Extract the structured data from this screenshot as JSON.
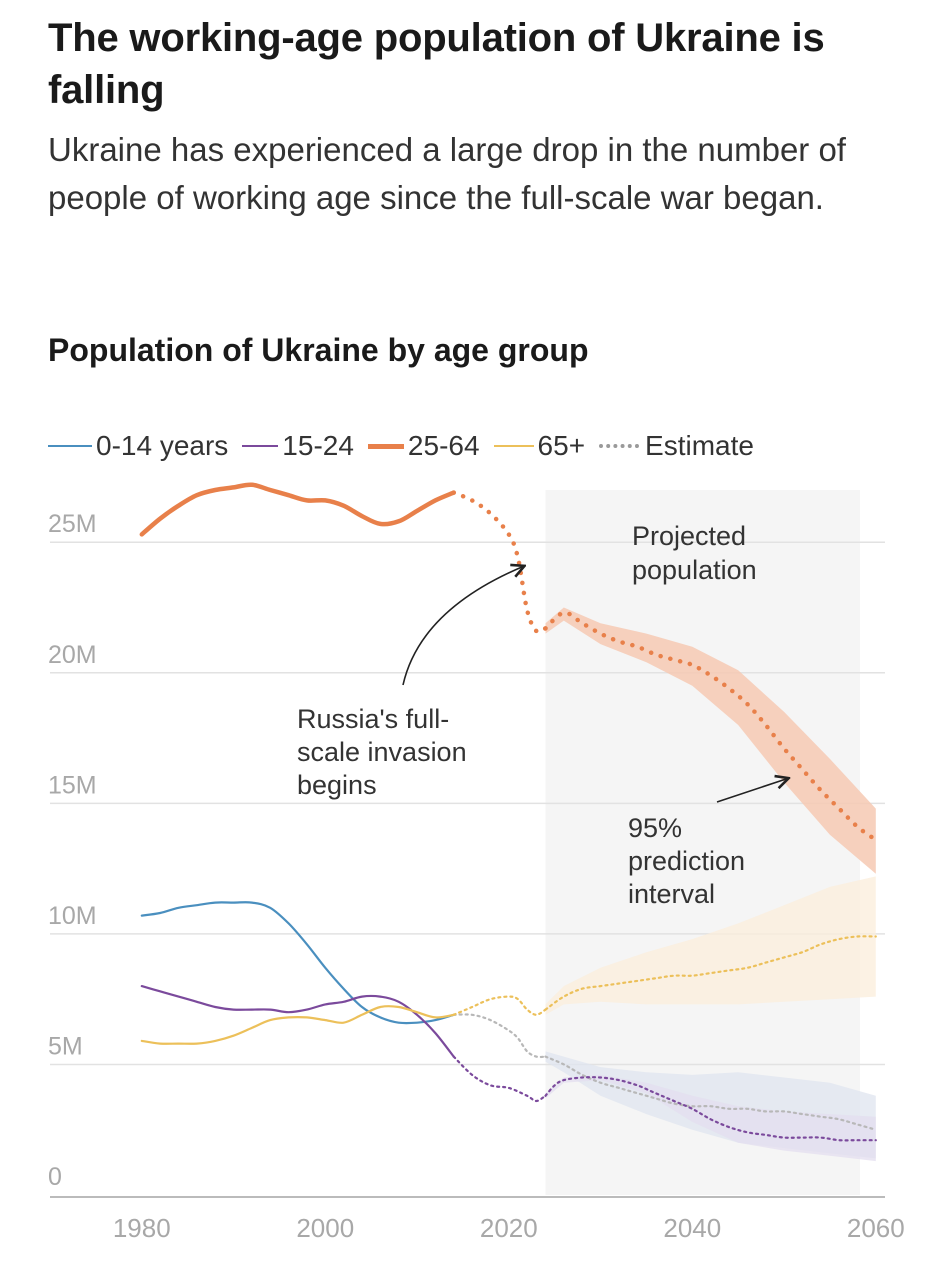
{
  "header": {
    "title": "The working-age population of Ukraine is falling",
    "subtitle": "Ukraine has experienced a large drop in the number of people of working age since the full-scale war began."
  },
  "chart_data": {
    "type": "line",
    "title": "Population of Ukraine by age group",
    "xlabel": "",
    "ylabel": "",
    "xlim": [
      1970,
      2061
    ],
    "ylim": [
      0,
      27
    ],
    "x_ticks": [
      1980,
      2000,
      2020,
      2040,
      2060
    ],
    "x_tick_labels": [
      "1980",
      "2000",
      "2020",
      "2040",
      "2060"
    ],
    "y_ticks": [
      0,
      5,
      10,
      15,
      20,
      25
    ],
    "y_tick_labels": [
      "0",
      "5M",
      "10M",
      "15M",
      "20M",
      "25M"
    ],
    "grid": true,
    "legend": [
      {
        "key": "age_0_14",
        "label": "0-14 years",
        "color": "#4a8fbf",
        "style": "solid"
      },
      {
        "key": "age_15_24",
        "label": "15-24",
        "color": "#7b4a9c",
        "style": "solid"
      },
      {
        "key": "age_25_64",
        "label": "25-64",
        "color": "#e8804a",
        "style": "solid"
      },
      {
        "key": "age_65_plus",
        "label": "65+",
        "color": "#ecc05a",
        "style": "solid"
      },
      {
        "key": "estimate",
        "label": "Estimate",
        "color": "#9a9a9a",
        "style": "dotted"
      }
    ],
    "projection_start": 2024,
    "projection_label": "Projected population",
    "series": [
      {
        "name": "25-64",
        "color": "#e8804a",
        "observed": [
          [
            1980,
            25.3
          ],
          [
            1982,
            25.9
          ],
          [
            1984,
            26.4
          ],
          [
            1986,
            26.8
          ],
          [
            1988,
            27.0
          ],
          [
            1990,
            27.1
          ],
          [
            1992,
            27.2
          ],
          [
            1994,
            27.0
          ],
          [
            1996,
            26.8
          ],
          [
            1998,
            26.6
          ],
          [
            2000,
            26.6
          ],
          [
            2002,
            26.4
          ],
          [
            2004,
            26.0
          ],
          [
            2006,
            25.7
          ],
          [
            2008,
            25.8
          ],
          [
            2010,
            26.2
          ],
          [
            2012,
            26.6
          ],
          [
            2014,
            26.9
          ]
        ],
        "estimate": [
          [
            2014,
            26.9
          ],
          [
            2016,
            26.6
          ],
          [
            2018,
            26.1
          ],
          [
            2020,
            25.3
          ],
          [
            2021,
            24.4
          ],
          [
            2022,
            22.4
          ],
          [
            2023,
            21.6
          ],
          [
            2024,
            21.7
          ]
        ],
        "projection": [
          [
            2024,
            21.7
          ],
          [
            2026,
            22.3
          ],
          [
            2028,
            21.9
          ],
          [
            2030,
            21.5
          ],
          [
            2032,
            21.2
          ],
          [
            2034,
            21.0
          ],
          [
            2036,
            20.7
          ],
          [
            2038,
            20.5
          ],
          [
            2040,
            20.3
          ],
          [
            2042,
            19.9
          ],
          [
            2044,
            19.4
          ],
          [
            2046,
            18.8
          ],
          [
            2048,
            18.0
          ],
          [
            2050,
            17.1
          ],
          [
            2052,
            16.3
          ],
          [
            2054,
            15.5
          ],
          [
            2056,
            14.8
          ],
          [
            2058,
            14.1
          ],
          [
            2060,
            13.6
          ]
        ],
        "interval_upper": [
          [
            2024,
            21.9
          ],
          [
            2026,
            22.5
          ],
          [
            2030,
            21.9
          ],
          [
            2035,
            21.5
          ],
          [
            2040,
            21.0
          ],
          [
            2045,
            20.1
          ],
          [
            2050,
            18.5
          ],
          [
            2055,
            16.7
          ],
          [
            2060,
            14.8
          ]
        ],
        "interval_lower": [
          [
            2024,
            21.5
          ],
          [
            2026,
            22.0
          ],
          [
            2030,
            21.1
          ],
          [
            2035,
            20.4
          ],
          [
            2040,
            19.5
          ],
          [
            2045,
            18.0
          ],
          [
            2050,
            15.8
          ],
          [
            2055,
            13.8
          ],
          [
            2060,
            12.3
          ]
        ]
      },
      {
        "name": "0-14 years",
        "color": "#4a8fbf",
        "observed": [
          [
            1980,
            10.7
          ],
          [
            1982,
            10.8
          ],
          [
            1984,
            11.0
          ],
          [
            1986,
            11.1
          ],
          [
            1988,
            11.2
          ],
          [
            1990,
            11.2
          ],
          [
            1992,
            11.2
          ],
          [
            1994,
            11.0
          ],
          [
            1996,
            10.4
          ],
          [
            1998,
            9.6
          ],
          [
            2000,
            8.7
          ],
          [
            2002,
            7.9
          ],
          [
            2004,
            7.2
          ],
          [
            2006,
            6.8
          ],
          [
            2008,
            6.6
          ],
          [
            2010,
            6.6
          ],
          [
            2012,
            6.7
          ],
          [
            2014,
            6.9
          ]
        ],
        "estimate": [
          [
            2014,
            6.9
          ],
          [
            2016,
            6.9
          ],
          [
            2018,
            6.7
          ],
          [
            2020,
            6.3
          ],
          [
            2021,
            6.0
          ],
          [
            2022,
            5.5
          ],
          [
            2023,
            5.3
          ],
          [
            2024,
            5.3
          ]
        ],
        "projection": [
          [
            2024,
            5.3
          ],
          [
            2026,
            5.0
          ],
          [
            2028,
            4.6
          ],
          [
            2030,
            4.3
          ],
          [
            2032,
            4.1
          ],
          [
            2034,
            3.9
          ],
          [
            2036,
            3.7
          ],
          [
            2038,
            3.5
          ],
          [
            2040,
            3.4
          ],
          [
            2042,
            3.4
          ],
          [
            2044,
            3.3
          ],
          [
            2046,
            3.3
          ],
          [
            2048,
            3.2
          ],
          [
            2050,
            3.2
          ],
          [
            2052,
            3.1
          ],
          [
            2054,
            3.0
          ],
          [
            2056,
            2.9
          ],
          [
            2058,
            2.7
          ],
          [
            2060,
            2.5
          ]
        ],
        "interval_upper": [
          [
            2024,
            5.5
          ],
          [
            2026,
            5.3
          ],
          [
            2030,
            4.9
          ],
          [
            2035,
            4.7
          ],
          [
            2040,
            4.6
          ],
          [
            2045,
            4.7
          ],
          [
            2050,
            4.5
          ],
          [
            2055,
            4.3
          ],
          [
            2060,
            3.8
          ]
        ],
        "interval_lower": [
          [
            2024,
            5.1
          ],
          [
            2026,
            4.7
          ],
          [
            2030,
            3.8
          ],
          [
            2035,
            3.1
          ],
          [
            2040,
            2.5
          ],
          [
            2045,
            2.0
          ],
          [
            2050,
            1.8
          ],
          [
            2055,
            1.6
          ],
          [
            2060,
            1.4
          ]
        ]
      },
      {
        "name": "15-24",
        "color": "#7b4a9c",
        "observed": [
          [
            1980,
            8.0
          ],
          [
            1982,
            7.8
          ],
          [
            1984,
            7.6
          ],
          [
            1986,
            7.4
          ],
          [
            1988,
            7.2
          ],
          [
            1990,
            7.1
          ],
          [
            1992,
            7.1
          ],
          [
            1994,
            7.1
          ],
          [
            1996,
            7.0
          ],
          [
            1998,
            7.1
          ],
          [
            2000,
            7.3
          ],
          [
            2002,
            7.4
          ],
          [
            2004,
            7.6
          ],
          [
            2006,
            7.6
          ],
          [
            2008,
            7.4
          ],
          [
            2010,
            6.9
          ],
          [
            2012,
            6.2
          ],
          [
            2014,
            5.3
          ]
        ],
        "estimate": [
          [
            2014,
            5.3
          ],
          [
            2016,
            4.6
          ],
          [
            2018,
            4.2
          ],
          [
            2020,
            4.1
          ],
          [
            2022,
            3.8
          ],
          [
            2023,
            3.6
          ],
          [
            2024,
            3.8
          ]
        ],
        "projection": [
          [
            2024,
            3.8
          ],
          [
            2025,
            4.2
          ],
          [
            2026,
            4.4
          ],
          [
            2028,
            4.5
          ],
          [
            2030,
            4.5
          ],
          [
            2032,
            4.4
          ],
          [
            2034,
            4.2
          ],
          [
            2036,
            3.9
          ],
          [
            2038,
            3.6
          ],
          [
            2040,
            3.3
          ],
          [
            2042,
            2.9
          ],
          [
            2044,
            2.6
          ],
          [
            2046,
            2.4
          ],
          [
            2048,
            2.3
          ],
          [
            2050,
            2.2
          ],
          [
            2052,
            2.2
          ],
          [
            2054,
            2.2
          ],
          [
            2056,
            2.1
          ],
          [
            2058,
            2.1
          ],
          [
            2060,
            2.1
          ]
        ],
        "interval_upper": [
          [
            2024,
            3.9
          ],
          [
            2026,
            4.5
          ],
          [
            2030,
            4.6
          ],
          [
            2035,
            4.3
          ],
          [
            2040,
            3.8
          ],
          [
            2045,
            3.4
          ],
          [
            2050,
            3.2
          ],
          [
            2055,
            3.1
          ],
          [
            2060,
            3.0
          ]
        ],
        "interval_lower": [
          [
            2024,
            3.7
          ],
          [
            2026,
            4.3
          ],
          [
            2030,
            4.4
          ],
          [
            2035,
            3.9
          ],
          [
            2040,
            2.8
          ],
          [
            2045,
            2.0
          ],
          [
            2050,
            1.7
          ],
          [
            2055,
            1.5
          ],
          [
            2060,
            1.3
          ]
        ]
      },
      {
        "name": "65+",
        "color": "#ecc05a",
        "observed": [
          [
            1980,
            5.9
          ],
          [
            1982,
            5.8
          ],
          [
            1984,
            5.8
          ],
          [
            1986,
            5.8
          ],
          [
            1988,
            5.9
          ],
          [
            1990,
            6.1
          ],
          [
            1992,
            6.4
          ],
          [
            1994,
            6.7
          ],
          [
            1996,
            6.8
          ],
          [
            1998,
            6.8
          ],
          [
            2000,
            6.7
          ],
          [
            2002,
            6.6
          ],
          [
            2004,
            6.9
          ],
          [
            2006,
            7.2
          ],
          [
            2008,
            7.2
          ],
          [
            2010,
            7.0
          ],
          [
            2012,
            6.8
          ],
          [
            2014,
            6.9
          ]
        ],
        "estimate": [
          [
            2014,
            6.9
          ],
          [
            2016,
            7.2
          ],
          [
            2018,
            7.5
          ],
          [
            2020,
            7.6
          ],
          [
            2021,
            7.5
          ],
          [
            2022,
            7.1
          ],
          [
            2023,
            6.9
          ],
          [
            2024,
            7.1
          ]
        ],
        "projection": [
          [
            2024,
            7.1
          ],
          [
            2026,
            7.6
          ],
          [
            2028,
            7.9
          ],
          [
            2030,
            8.0
          ],
          [
            2032,
            8.1
          ],
          [
            2034,
            8.2
          ],
          [
            2036,
            8.3
          ],
          [
            2038,
            8.4
          ],
          [
            2040,
            8.4
          ],
          [
            2042,
            8.5
          ],
          [
            2044,
            8.6
          ],
          [
            2046,
            8.7
          ],
          [
            2048,
            8.9
          ],
          [
            2050,
            9.1
          ],
          [
            2052,
            9.3
          ],
          [
            2054,
            9.6
          ],
          [
            2056,
            9.8
          ],
          [
            2058,
            9.9
          ],
          [
            2060,
            9.9
          ]
        ],
        "interval_upper": [
          [
            2024,
            7.3
          ],
          [
            2026,
            8.0
          ],
          [
            2030,
            8.7
          ],
          [
            2035,
            9.3
          ],
          [
            2040,
            9.8
          ],
          [
            2045,
            10.4
          ],
          [
            2050,
            11.1
          ],
          [
            2055,
            11.8
          ],
          [
            2060,
            12.2
          ]
        ],
        "interval_lower": [
          [
            2024,
            6.9
          ],
          [
            2026,
            7.3
          ],
          [
            2030,
            7.4
          ],
          [
            2035,
            7.3
          ],
          [
            2040,
            7.3
          ],
          [
            2045,
            7.3
          ],
          [
            2050,
            7.4
          ],
          [
            2055,
            7.5
          ],
          [
            2060,
            7.6
          ]
        ]
      }
    ],
    "annotations": [
      {
        "key": "invasion",
        "lines": [
          "Russia's full-",
          "scale invasion",
          "begins"
        ],
        "target": [
          2022,
          24.3
        ]
      },
      {
        "key": "interval",
        "lines": [
          "95%",
          "prediction",
          "interval"
        ],
        "target": [
          2051,
          16.1
        ]
      }
    ]
  }
}
